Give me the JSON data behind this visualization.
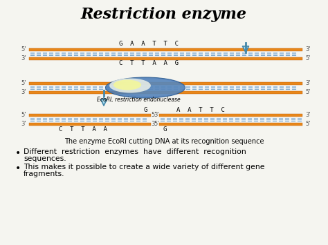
{
  "title": "Restriction enzyme",
  "subtitle": "The enzyme EcoRI cutting DNA at its recognition sequence",
  "bullet1": "Different  restriction  enzymes  have  different  recognition\nsequences.",
  "bullet2": "This makes it possible to create a wide variety of different gene\nfragments.",
  "bg_color": "#f5f5f0",
  "orange": "#E8871A",
  "orange_dark": "#C06010",
  "blue_tile": "#7BA8CC",
  "blue_tile2": "#A8C4DC",
  "dna_top_seq": "G  A  A  T  T  C",
  "dna_top_comp": "C  T  T  A  A  G",
  "ecori_label": "EcoRI, restriction endonuclease",
  "arrow_color": "#AADDF0",
  "arrow_edge": "#4488AA"
}
